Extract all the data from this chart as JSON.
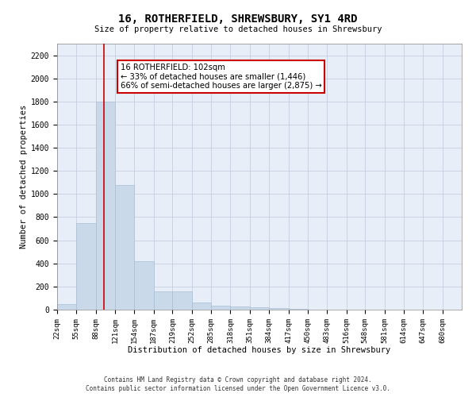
{
  "title": "16, ROTHERFIELD, SHREWSBURY, SY1 4RD",
  "subtitle": "Size of property relative to detached houses in Shrewsbury",
  "xlabel": "Distribution of detached houses by size in Shrewsbury",
  "ylabel": "Number of detached properties",
  "footer_line1": "Contains HM Land Registry data © Crown copyright and database right 2024.",
  "footer_line2": "Contains public sector information licensed under the Open Government Licence v3.0.",
  "annotation_title": "16 ROTHERFIELD: 102sqm",
  "annotation_line1": "← 33% of detached houses are smaller (1,446)",
  "annotation_line2": "66% of semi-detached houses are larger (2,875) →",
  "bar_color": "#c9d9ea",
  "bar_edge_color": "#a8bed4",
  "grid_color": "#c5cfe0",
  "background_color": "#e8eef7",
  "annotation_box_color": "#ffffff",
  "annotation_box_edge": "#cc0000",
  "red_line_color": "#cc0000",
  "bin_labels": [
    "22sqm",
    "55sqm",
    "88sqm",
    "121sqm",
    "154sqm",
    "187sqm",
    "219sqm",
    "252sqm",
    "285sqm",
    "318sqm",
    "351sqm",
    "384sqm",
    "417sqm",
    "450sqm",
    "483sqm",
    "516sqm",
    "548sqm",
    "581sqm",
    "614sqm",
    "647sqm",
    "680sqm"
  ],
  "bin_edges": [
    22,
    55,
    88,
    121,
    154,
    187,
    219,
    252,
    285,
    318,
    351,
    384,
    417,
    450,
    483,
    516,
    548,
    581,
    614,
    647,
    680,
    713
  ],
  "bar_heights": [
    50,
    750,
    1800,
    1075,
    420,
    155,
    155,
    65,
    35,
    25,
    20,
    15,
    10,
    0,
    0,
    0,
    0,
    0,
    0,
    0,
    0
  ],
  "ylim": [
    0,
    2300
  ],
  "red_line_x": 102,
  "yticks": [
    0,
    200,
    400,
    600,
    800,
    1000,
    1200,
    1400,
    1600,
    1800,
    2000,
    2200
  ]
}
